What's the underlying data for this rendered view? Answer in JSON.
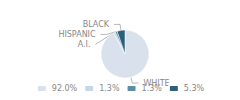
{
  "chart_data": {
    "type": "pie",
    "categories": [
      "WHITE",
      "A.I.",
      "HISPANIC",
      "BLACK"
    ],
    "values": [
      92.0,
      1.3,
      1.3,
      5.3
    ],
    "value_labels": [
      "92.0%",
      "1.3%",
      "1.3%",
      "5.3%"
    ],
    "colors": [
      "#d9e2ec",
      "#c5d8e8",
      "#5b8fa8",
      "#2e5f7a"
    ],
    "legend": "bottom"
  }
}
